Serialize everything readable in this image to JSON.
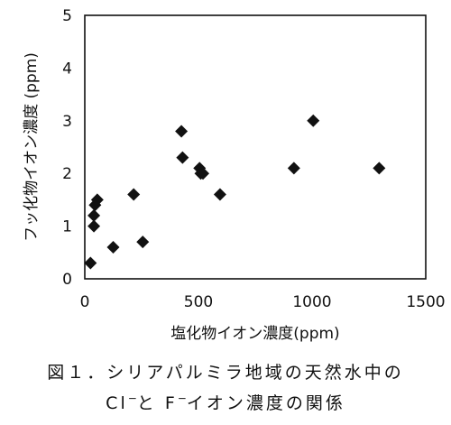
{
  "chart_data": {
    "type": "scatter",
    "xlabel": "塩化物イオン濃度(ppm)",
    "ylabel": "フッ化物イオン濃度 (ppm)",
    "xlim": [
      0,
      1500
    ],
    "ylim": [
      0,
      5
    ],
    "xticks": [
      "0",
      "500",
      "1000",
      "1500"
    ],
    "yticks": [
      "0",
      "1",
      "2",
      "3",
      "4",
      "5"
    ],
    "grid": false,
    "marker": "diamond",
    "marker_color": "#111111",
    "points": [
      {
        "x": 25,
        "y": 0.3
      },
      {
        "x": 40,
        "y": 1.0
      },
      {
        "x": 40,
        "y": 1.2
      },
      {
        "x": 45,
        "y": 1.4
      },
      {
        "x": 55,
        "y": 1.5
      },
      {
        "x": 125,
        "y": 0.6
      },
      {
        "x": 215,
        "y": 1.6
      },
      {
        "x": 255,
        "y": 0.7
      },
      {
        "x": 425,
        "y": 2.8
      },
      {
        "x": 430,
        "y": 2.3
      },
      {
        "x": 505,
        "y": 2.1
      },
      {
        "x": 510,
        "y": 2.0
      },
      {
        "x": 520,
        "y": 2.0
      },
      {
        "x": 595,
        "y": 1.6
      },
      {
        "x": 920,
        "y": 2.1
      },
      {
        "x": 1005,
        "y": 3.0
      },
      {
        "x": 1295,
        "y": 2.1
      }
    ]
  },
  "caption": {
    "line1_main": "図１．シリアパルミラ地域の天然水中の",
    "line2_cl": "Cl",
    "line2_sup1": "−",
    "line2_mid": "と F",
    "line2_sup2": "−",
    "line2_rest": "イオン濃度の関係"
  }
}
